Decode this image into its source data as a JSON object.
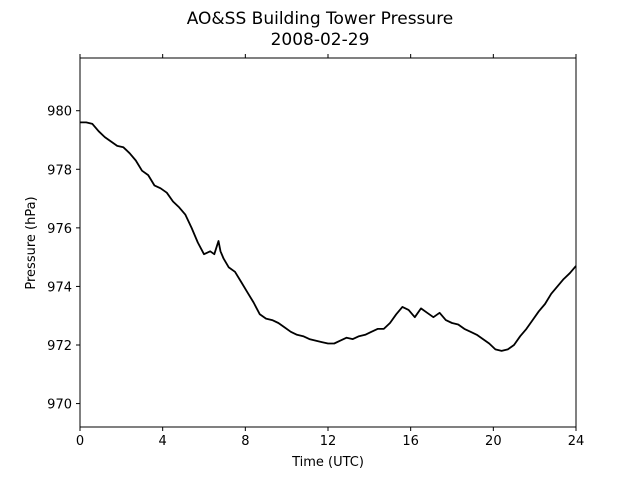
{
  "chart_data": {
    "type": "line",
    "title": "AO&SS Building Tower Pressure",
    "subtitle": "2008-02-29",
    "xlabel": "Time (UTC)",
    "ylabel": "Pressure (hPa)",
    "xlim": [
      0,
      24
    ],
    "ylim": [
      969.2,
      981.8
    ],
    "xticks": [
      0,
      4,
      8,
      12,
      16,
      20,
      24
    ],
    "xtick_labels": [
      "0",
      "4",
      "8",
      "12",
      "16",
      "20",
      "24"
    ],
    "yticks": [
      970,
      972,
      974,
      976,
      978,
      980
    ],
    "ytick_labels": [
      "970",
      "972",
      "974",
      "976",
      "978",
      "980"
    ],
    "grid": false,
    "legend": "none",
    "series": [
      {
        "color": "#000000",
        "x": [
          0.0,
          0.3,
          0.6,
          0.9,
          1.2,
          1.5,
          1.8,
          2.1,
          2.4,
          2.7,
          3.0,
          3.3,
          3.6,
          3.9,
          4.2,
          4.5,
          4.8,
          5.1,
          5.4,
          5.7,
          6.0,
          6.3,
          6.5,
          6.7,
          6.8,
          6.95,
          7.2,
          7.5,
          7.8,
          8.1,
          8.4,
          8.7,
          9.0,
          9.3,
          9.6,
          9.9,
          10.2,
          10.5,
          10.8,
          11.1,
          11.4,
          11.7,
          12.0,
          12.3,
          12.6,
          12.9,
          13.2,
          13.5,
          13.8,
          14.1,
          14.4,
          14.7,
          15.0,
          15.3,
          15.6,
          15.9,
          16.2,
          16.5,
          16.8,
          17.1,
          17.4,
          17.7,
          18.0,
          18.3,
          18.6,
          18.9,
          19.2,
          19.5,
          19.8,
          20.1,
          20.4,
          20.7,
          21.0,
          21.3,
          21.6,
          21.9,
          22.2,
          22.5,
          22.8,
          23.1,
          23.4,
          23.7,
          24.0
        ],
        "y": [
          979.6,
          979.6,
          979.55,
          979.3,
          979.1,
          978.95,
          978.8,
          978.75,
          978.55,
          978.3,
          977.95,
          977.8,
          977.45,
          977.35,
          977.2,
          976.9,
          976.7,
          976.45,
          976.0,
          975.5,
          975.1,
          975.2,
          975.1,
          975.55,
          975.2,
          974.95,
          974.65,
          974.5,
          974.15,
          973.8,
          973.45,
          973.05,
          972.9,
          972.85,
          972.75,
          972.6,
          972.45,
          972.35,
          972.3,
          972.2,
          972.15,
          972.1,
          972.05,
          972.05,
          972.15,
          972.25,
          972.2,
          972.3,
          972.35,
          972.45,
          972.55,
          972.55,
          972.75,
          973.05,
          973.3,
          973.2,
          972.95,
          973.25,
          973.1,
          972.95,
          973.1,
          972.85,
          972.75,
          972.7,
          972.55,
          972.45,
          972.35,
          972.2,
          972.05,
          971.85,
          971.8,
          971.85,
          972.0,
          972.3,
          972.55,
          972.85,
          973.15,
          973.4,
          973.75,
          974.0,
          974.25,
          974.45,
          974.7
        ]
      }
    ]
  }
}
